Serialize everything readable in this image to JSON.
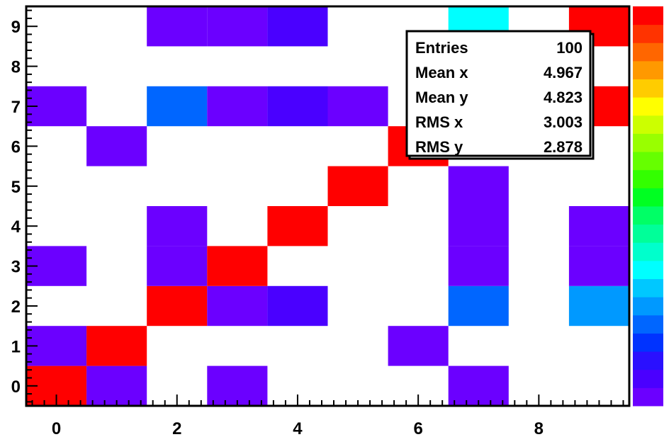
{
  "chart_data": {
    "type": "heatmap",
    "title": "",
    "xlabel": "",
    "ylabel": "",
    "xlim": [
      -0.5,
      9.5
    ],
    "ylim": [
      -0.5,
      9.5
    ],
    "x_ticks": [
      0,
      2,
      4,
      6,
      8
    ],
    "y_ticks": [
      0,
      1,
      2,
      3,
      4,
      5,
      6,
      7,
      8,
      9
    ],
    "z_range": [
      1,
      5
    ],
    "palette": [
      "#6b00ff",
      "#4a00ff",
      "#2a10ff",
      "#0033ff",
      "#0066ff",
      "#0099ff",
      "#00c8ff",
      "#00ffff",
      "#00ffcc",
      "#00ff99",
      "#00ff66",
      "#00ff22",
      "#33ff00",
      "#66ff00",
      "#99ff00",
      "#ccff00",
      "#ffff00",
      "#ffcc00",
      "#ff9900",
      "#ff6600",
      "#ff3300",
      "#ff0000"
    ],
    "cells": [
      {
        "x": 0,
        "y": 0,
        "z": 5
      },
      {
        "x": 1,
        "y": 0,
        "z": 1.1
      },
      {
        "x": 3,
        "y": 0,
        "z": 1
      },
      {
        "x": 7,
        "y": 0,
        "z": 1
      },
      {
        "x": 0,
        "y": 1,
        "z": 1.1
      },
      {
        "x": 1,
        "y": 1,
        "z": 5
      },
      {
        "x": 6,
        "y": 1,
        "z": 1
      },
      {
        "x": 2,
        "y": 2,
        "z": 5
      },
      {
        "x": 3,
        "y": 2,
        "z": 1
      },
      {
        "x": 4,
        "y": 2,
        "z": 1.2
      },
      {
        "x": 7,
        "y": 2,
        "z": 1.8
      },
      {
        "x": 9,
        "y": 2,
        "z": 2
      },
      {
        "x": 0,
        "y": 3,
        "z": 1.1
      },
      {
        "x": 2,
        "y": 3,
        "z": 1
      },
      {
        "x": 3,
        "y": 3,
        "z": 5
      },
      {
        "x": 7,
        "y": 3,
        "z": 1
      },
      {
        "x": 9,
        "y": 3,
        "z": 1
      },
      {
        "x": 2,
        "y": 4,
        "z": 1
      },
      {
        "x": 4,
        "y": 4,
        "z": 5
      },
      {
        "x": 7,
        "y": 4,
        "z": 1
      },
      {
        "x": 9,
        "y": 4,
        "z": 1.1
      },
      {
        "x": 5,
        "y": 5,
        "z": 5
      },
      {
        "x": 7,
        "y": 5,
        "z": 1
      },
      {
        "x": 1,
        "y": 6,
        "z": 1
      },
      {
        "x": 6,
        "y": 6,
        "z": 5
      },
      {
        "x": 0,
        "y": 7,
        "z": 1
      },
      {
        "x": 2,
        "y": 7,
        "z": 1.9
      },
      {
        "x": 3,
        "y": 7,
        "z": 1
      },
      {
        "x": 4,
        "y": 7,
        "z": 1.2
      },
      {
        "x": 5,
        "y": 7,
        "z": 1.1
      },
      {
        "x": 9,
        "y": 7,
        "z": 5
      },
      {
        "x": 2,
        "y": 9,
        "z": 1.1
      },
      {
        "x": 3,
        "y": 9,
        "z": 1
      },
      {
        "x": 4,
        "y": 9,
        "z": 1.2
      },
      {
        "x": 7,
        "y": 9,
        "z": 2.3
      },
      {
        "x": 9,
        "y": 9,
        "z": 5
      }
    ],
    "stats": {
      "rows": [
        {
          "label": "Entries",
          "value": "100"
        },
        {
          "label": "Mean x",
          "value": "4.967"
        },
        {
          "label": "Mean y",
          "value": "4.823"
        },
        {
          "label": "RMS x",
          "value": "3.003"
        },
        {
          "label": "RMS y",
          "value": "2.878"
        }
      ]
    }
  }
}
